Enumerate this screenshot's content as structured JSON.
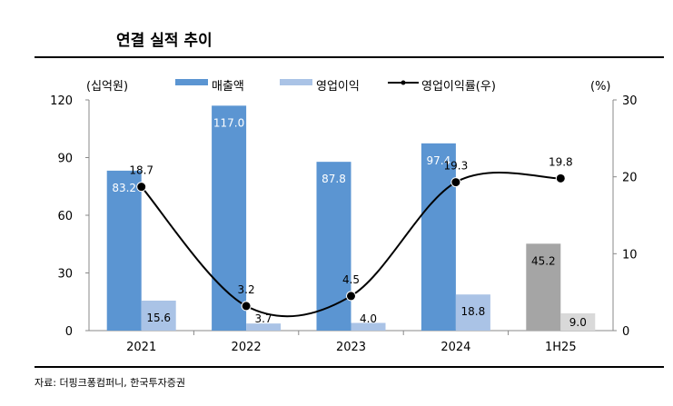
{
  "chart_data": {
    "type": "bar",
    "title": "연결 실적 추이",
    "left_unit": "(십억원)",
    "right_unit": "(%)",
    "categories": [
      "2021",
      "2022",
      "2023",
      "2024",
      "1H25"
    ],
    "series": [
      {
        "name": "매출액",
        "type": "bar",
        "axis": "left",
        "values": [
          83.2,
          117.0,
          87.8,
          97.4,
          45.2
        ],
        "labels": [
          "83.2",
          "117.0",
          "87.8",
          "97.4",
          "45.2"
        ]
      },
      {
        "name": "영업이익",
        "type": "bar",
        "axis": "left",
        "values": [
          15.6,
          3.7,
          4.0,
          18.8,
          9.0
        ],
        "labels": [
          "15.6",
          "3.7",
          "4.0",
          "18.8",
          "9.0"
        ]
      },
      {
        "name": "영업이익률(우)",
        "type": "line",
        "axis": "right",
        "values": [
          18.7,
          3.2,
          4.5,
          19.3,
          19.8
        ],
        "labels": [
          "18.7",
          "3.2",
          "4.5",
          "19.3",
          "19.8"
        ]
      }
    ],
    "ylim_left": [
      0,
      120
    ],
    "yticks_left": [
      "0",
      "30",
      "60",
      "90",
      "120"
    ],
    "ylim_right": [
      0,
      30
    ],
    "yticks_right": [
      "0",
      "10",
      "20",
      "30"
    ],
    "legend_position": "top",
    "colors": {
      "revenue": "#5b95d2",
      "op": "#aac3e6",
      "revenue_estimate": "#a5a5a5",
      "op_estimate": "#d9d9d9",
      "line": "#000000"
    }
  },
  "source": "자료: 더핑크퐁컴퍼니, 한국투자증권"
}
